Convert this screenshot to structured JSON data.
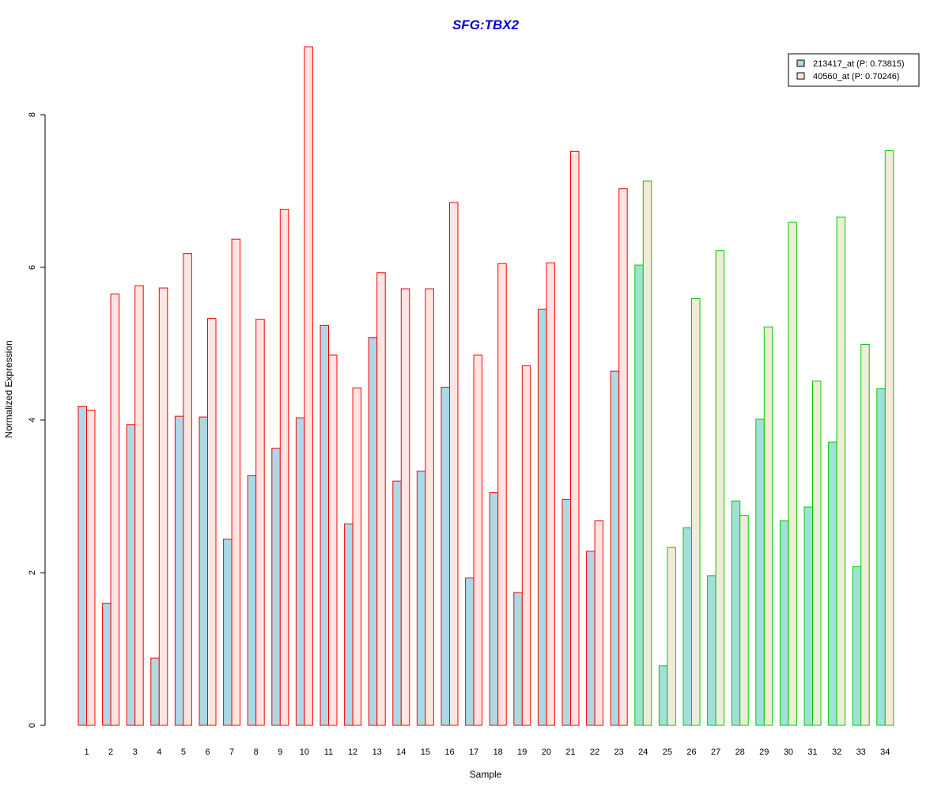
{
  "chart_data": {
    "type": "bar",
    "title": "SFG:TBX2",
    "title_color": "#0000cc",
    "xlabel": "Sample",
    "ylabel": "Normalized Expression",
    "ylim": [
      0,
      8.9
    ],
    "yticks": [
      0,
      2,
      4,
      6,
      8
    ],
    "grid": false,
    "legend_position": "top-right",
    "categories": [
      "1",
      "2",
      "3",
      "4",
      "5",
      "6",
      "7",
      "8",
      "9",
      "10",
      "11",
      "12",
      "13",
      "14",
      "15",
      "16",
      "17",
      "18",
      "19",
      "20",
      "21",
      "22",
      "23",
      "24",
      "25",
      "26",
      "27",
      "28",
      "29",
      "30",
      "31",
      "32",
      "33",
      "34"
    ],
    "group_colors": {
      "red": {
        "border": "#ff0000",
        "fill_first": "#add8e6",
        "fill_second": "#ffe4e1"
      },
      "green": {
        "border": "#00cc00",
        "fill_first": "#a0e0d8",
        "fill_second": "#f0ecd8"
      }
    },
    "sample_groups": [
      "red",
      "red",
      "red",
      "red",
      "red",
      "red",
      "red",
      "red",
      "red",
      "red",
      "red",
      "red",
      "red",
      "red",
      "red",
      "red",
      "red",
      "red",
      "red",
      "red",
      "red",
      "red",
      "red",
      "green",
      "green",
      "green",
      "green",
      "green",
      "green",
      "green",
      "green",
      "green",
      "green",
      "green"
    ],
    "series": [
      {
        "name": "213417_at (P: 0.73815)",
        "legend_fill": "#add8e6",
        "values": [
          4.18,
          1.6,
          3.94,
          0.88,
          4.05,
          4.04,
          2.44,
          3.27,
          3.63,
          4.03,
          5.24,
          2.64,
          5.08,
          3.2,
          3.33,
          4.43,
          1.93,
          3.05,
          1.74,
          5.45,
          2.96,
          2.28,
          4.64,
          6.03,
          0.78,
          2.59,
          1.96,
          2.94,
          4.01,
          2.68,
          2.86,
          3.71,
          2.08,
          4.41
        ]
      },
      {
        "name": "40560_at (P: 0.70246)",
        "legend_fill": "#ffe4e1",
        "values": [
          4.13,
          5.65,
          5.76,
          5.73,
          6.18,
          5.33,
          6.37,
          5.32,
          6.76,
          8.89,
          4.85,
          4.42,
          5.93,
          5.72,
          5.72,
          6.85,
          4.85,
          6.05,
          4.71,
          6.06,
          7.52,
          2.68,
          7.03,
          7.13,
          2.33,
          5.59,
          6.22,
          2.75,
          5.22,
          6.59,
          4.51,
          6.66,
          4.99,
          7.53
        ]
      }
    ]
  }
}
